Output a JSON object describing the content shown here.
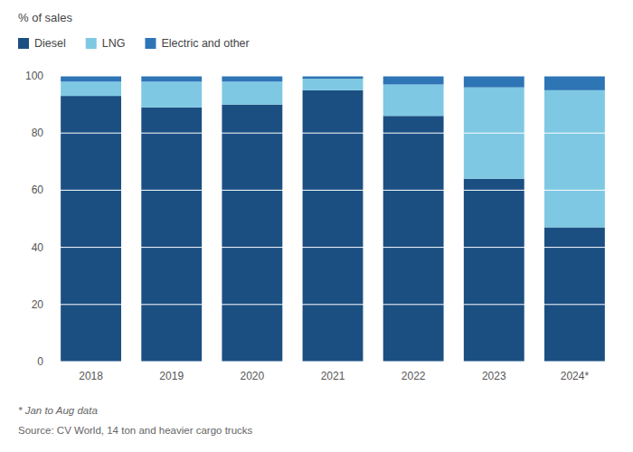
{
  "chart_data": {
    "type": "bar",
    "stacked": true,
    "ylabel": "% of sales",
    "categories": [
      "2018",
      "2019",
      "2020",
      "2021",
      "2022",
      "2023",
      "2024*"
    ],
    "series": [
      {
        "name": "Diesel",
        "color": "#1b4f82",
        "values": [
          93,
          89,
          90,
          95,
          86,
          64,
          47
        ]
      },
      {
        "name": "LNG",
        "color": "#7ec8e3",
        "values": [
          5,
          9,
          8,
          4,
          11,
          32,
          48
        ]
      },
      {
        "name": "Electric and other",
        "color": "#2e75b6",
        "values": [
          2,
          2,
          2,
          1,
          3,
          4,
          5
        ]
      }
    ],
    "ylim": [
      0,
      100
    ],
    "yticks": [
      0,
      20,
      40,
      60,
      80,
      100
    ],
    "grid": true,
    "legend": "top",
    "annotations": [
      "* Jan to Aug data",
      "Source: CV World, 14 ton and heavier cargo trucks"
    ]
  }
}
